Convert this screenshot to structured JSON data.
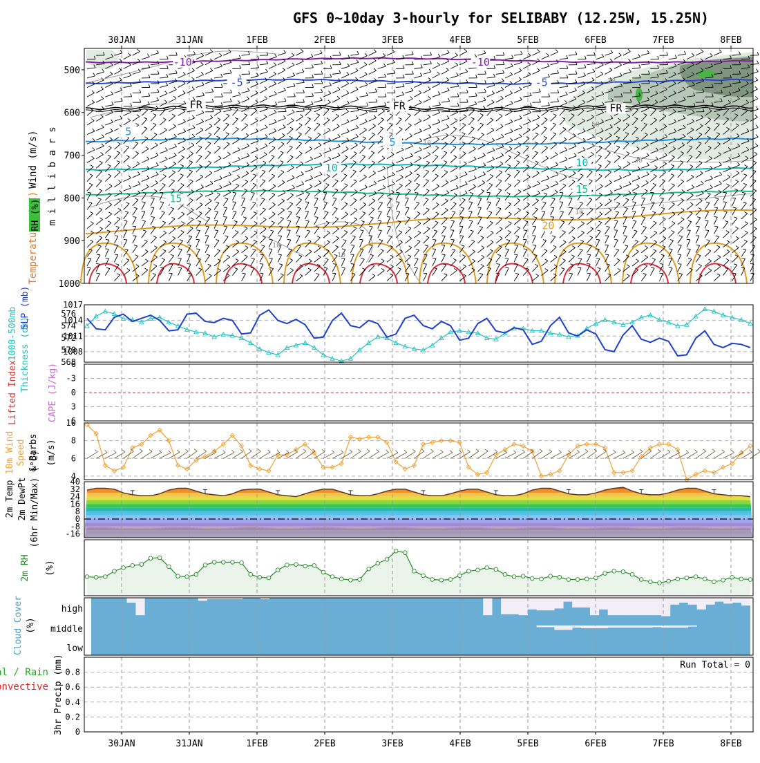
{
  "title": "GFS 0~10day 3-hourly for SELIBABY (12.25W, 15.25N)",
  "dates": [
    "30JAN",
    "31JAN",
    "1FEB",
    "2FEB",
    "3FEB",
    "4FEB",
    "5FEB",
    "6FEB",
    "7FEB",
    "8FEB"
  ],
  "colors": {
    "wind_barb": "#000000",
    "rh_contour": "#a0a0a0",
    "rh_fill_light": "#e2ebe2",
    "rh_fill_mid": "#b7c7b7",
    "rh_fill_dark": "#7f957f",
    "rh_fill_peak": "#46b446",
    "thickness": "#22c2c2",
    "slp": "#1c3fd0",
    "lifted_index": "#dd3333",
    "cape": "#cc66cc",
    "wind_speed": "#f0a030",
    "rh2m_line": "#228b22",
    "rh2m_fill": "#eaf4ea",
    "cloud": "#6aaed6",
    "cloud_clear": "#f2eef6",
    "precip_total": "#22aa22",
    "precip_conv": "#dd2222"
  },
  "chart_data": [
    {
      "type": "heatmap",
      "name": "upper_air",
      "ylabel_parts": [
        "Wind (m/s)",
        "Temperature (°C)",
        "RH (%)",
        "m i l l i b a r s"
      ],
      "yticks": [
        "500",
        "600",
        "700",
        "800",
        "900",
        "1000"
      ],
      "ylim": [
        1000,
        450
      ],
      "isotherm_labels": [
        {
          "text": "-10",
          "x": 0.9,
          "p": 482,
          "color": "#8a1aa8"
        },
        {
          "text": "-10",
          "x": 5.3,
          "p": 482,
          "color": "#8a1aa8"
        },
        {
          "text": "-5",
          "x": 1.7,
          "p": 530,
          "color": "#2848d0"
        },
        {
          "text": "-5",
          "x": 6.2,
          "p": 530,
          "color": "#2848d0"
        },
        {
          "text": "FR",
          "x": 1.1,
          "p": 582,
          "color": "#000000"
        },
        {
          "text": "FR",
          "x": 4.1,
          "p": 585,
          "color": "#000000"
        },
        {
          "text": "FR",
          "x": 7.3,
          "p": 590,
          "color": "#000000"
        },
        {
          "text": "5",
          "x": 0.1,
          "p": 645,
          "color": "#1e90e0"
        },
        {
          "text": "5",
          "x": 4.0,
          "p": 670,
          "color": "#1e90e0"
        },
        {
          "text": "10",
          "x": 3.1,
          "p": 730,
          "color": "#10b5b5"
        },
        {
          "text": "10",
          "x": 6.8,
          "p": 718,
          "color": "#10b5b5"
        },
        {
          "text": "15",
          "x": 0.8,
          "p": 802,
          "color": "#1db88a"
        },
        {
          "text": "15",
          "x": 6.8,
          "p": 780,
          "color": "#1db88a"
        },
        {
          "text": "20",
          "x": 6.3,
          "p": 865,
          "color": "#e09a20"
        }
      ],
      "rh_labels": [
        "30",
        "50",
        "10",
        "30",
        "10",
        "10",
        "10"
      ]
    },
    {
      "type": "line",
      "name": "slp_thickness",
      "ylabel_parts": [
        "1000-500mb",
        "Thickness (dm)",
        "SLP (mb)"
      ],
      "yticks_left": [
        "568",
        "570",
        "572",
        "574",
        "576"
      ],
      "yticks_right": [
        "1008",
        "1011",
        "1014",
        "1017"
      ],
      "ylim_thickness": [
        568,
        577.5
      ],
      "ylim_slp": [
        1006,
        1017
      ],
      "x": [
        0,
        0.125,
        0.25,
        0.375,
        0.5,
        0.625,
        0.75,
        0.875,
        1,
        1.125,
        1.25,
        1.375,
        1.5,
        1.625,
        1.75,
        1.875,
        2,
        2.125,
        2.25,
        2.375,
        2.5,
        2.625,
        2.75,
        2.875,
        3,
        3.125,
        3.25,
        3.375,
        3.5,
        3.625,
        3.75,
        3.875,
        4,
        4.125,
        4.25,
        4.375,
        4.5,
        4.625,
        4.75,
        4.875,
        5,
        5.125,
        5.25,
        5.375,
        5.5,
        5.625,
        5.75,
        5.875,
        6,
        6.125,
        6.25,
        6.375,
        6.5,
        6.625,
        6.75,
        6.875,
        7,
        7.125,
        7.25,
        7.375,
        7.5,
        7.625,
        7.75,
        7.875,
        8,
        8.125,
        8.25,
        8.375,
        8.5,
        8.625,
        8.75,
        8.875,
        9,
        9.125
      ],
      "series": [
        {
          "name": "thickness",
          "values": [
            574.0,
            575.6,
            576.4,
            576.0,
            575.2,
            575.0,
            574.6,
            575.2,
            575.4,
            574.6,
            574.0,
            573.4,
            573.0,
            572.8,
            572.2,
            572.6,
            572.4,
            572.0,
            571.2,
            570.2,
            569.6,
            569.2,
            570.4,
            570.8,
            571.2,
            570.4,
            569.2,
            568.6,
            568.2,
            568.6,
            570.0,
            571.2,
            572.2,
            572.0,
            571.2,
            570.6,
            570.2,
            570.0,
            570.8,
            572.0,
            573.0,
            573.2,
            573.0,
            572.8,
            572.0,
            571.8,
            572.8,
            573.6,
            573.6,
            573.2,
            573.2,
            572.8,
            572.6,
            572.2,
            572.4,
            573.6,
            574.4,
            575.0,
            574.6,
            574.2,
            574.6,
            575.4,
            575.8,
            575.0,
            574.6,
            574.0,
            574.2,
            575.6,
            576.8,
            576.4,
            575.8,
            575.4,
            575.0,
            574.4
          ]
        },
        {
          "name": "slp",
          "values": [
            1014.4,
            1012.4,
            1012.2,
            1014.6,
            1015.2,
            1013.8,
            1014.4,
            1015.0,
            1014.0,
            1012.0,
            1012.2,
            1015.2,
            1015.4,
            1013.8,
            1013.6,
            1014.4,
            1014.0,
            1011.4,
            1011.6,
            1015.0,
            1016.0,
            1014.0,
            1013.4,
            1014.2,
            1013.2,
            1010.6,
            1010.8,
            1014.0,
            1015.4,
            1013.0,
            1012.6,
            1014.0,
            1013.4,
            1010.8,
            1011.4,
            1014.4,
            1015.0,
            1013.0,
            1012.4,
            1013.8,
            1013.0,
            1010.2,
            1010.6,
            1013.4,
            1014.4,
            1012.0,
            1011.6,
            1012.6,
            1012.2,
            1009.4,
            1010.0,
            1013.0,
            1014.6,
            1011.6,
            1011.0,
            1012.2,
            1011.4,
            1008.4,
            1008.0,
            1011.2,
            1013.0,
            1010.4,
            1009.8,
            1010.6,
            1010.0,
            1007.2,
            1007.4,
            1010.6,
            1012.0,
            1009.4,
            1008.8,
            1009.6,
            1009.4,
            1008.8
          ]
        }
      ]
    },
    {
      "type": "line",
      "name": "stability",
      "ylabel_parts": [
        "Lifted Index",
        "CAPE (J/kg)"
      ],
      "yticks": [
        "-6",
        "-3",
        "0",
        "3",
        "6"
      ],
      "ylim": [
        -6,
        6
      ],
      "series": [
        {
          "name": "lifted_index",
          "values": [
            0
          ]
        }
      ]
    },
    {
      "type": "line",
      "name": "wind10m",
      "ylabel_parts": [
        "10m Wind",
        "Speed",
        "& Barbs",
        "(m/s)"
      ],
      "yticks": [
        "4",
        "6",
        "8",
        "10"
      ],
      "ylim": [
        3.6,
        10
      ],
      "values": [
        9.8,
        8.8,
        5.2,
        4.6,
        5.0,
        7.2,
        7.6,
        8.6,
        9.2,
        8.0,
        5.2,
        4.8,
        5.8,
        6.2,
        6.8,
        7.6,
        8.6,
        7.4,
        5.2,
        4.8,
        4.6,
        6.4,
        6.4,
        7.0,
        7.6,
        6.6,
        5.0,
        5.0,
        5.4,
        8.4,
        8.2,
        8.4,
        8.4,
        7.8,
        5.6,
        4.8,
        5.2,
        7.6,
        7.8,
        8.0,
        8.0,
        7.8,
        5.0,
        4.2,
        4.4,
        6.4,
        7.0,
        7.6,
        7.4,
        6.8,
        4.0,
        4.2,
        4.6,
        6.4,
        7.4,
        7.6,
        7.6,
        7.2,
        4.4,
        4.4,
        4.6,
        6.2,
        7.2,
        7.6,
        7.6,
        7.0,
        3.6,
        4.2,
        4.6,
        4.4,
        5.0,
        5.4,
        6.6,
        7.4
      ]
    },
    {
      "type": "area",
      "name": "temperature2m",
      "ylabel_parts": [
        "2m Temp",
        "2m DewPt",
        "(6hr Min/Max) (°C)"
      ],
      "yticks": [
        "40",
        "32",
        "24",
        "16",
        "8",
        "0",
        "-8",
        "-16"
      ],
      "ylim": [
        -20,
        40
      ],
      "series": [
        {
          "name": "temp",
          "values": [
            31,
            33,
            33,
            32,
            28,
            26,
            25,
            25,
            27,
            31,
            33,
            33,
            30,
            27,
            26,
            25,
            27,
            31,
            32,
            32,
            29,
            26,
            25,
            24,
            27,
            30,
            32,
            32,
            29,
            26,
            25,
            25,
            27,
            30,
            32,
            32,
            29,
            26,
            25,
            25,
            27,
            30,
            32,
            32,
            29,
            26,
            25,
            25,
            27,
            31,
            33,
            33,
            30,
            27,
            26,
            26,
            28,
            31,
            33,
            34,
            30,
            27,
            26,
            26,
            28,
            31,
            33,
            33,
            30,
            27,
            26,
            25,
            25,
            24
          ]
        },
        {
          "name": "dewpoint",
          "values": [
            -9,
            -9,
            -9,
            -9.5,
            -10,
            -10,
            -10,
            -10,
            -9.5,
            -9,
            -9,
            -9,
            -9.5,
            -10,
            -10,
            -10,
            -9.5,
            -9,
            -8.5,
            -9,
            -9.5,
            -10,
            -10,
            -10,
            -9.5,
            -9,
            -9,
            -9,
            -9.5,
            -10,
            -10,
            -10,
            -9.5,
            -9,
            -9,
            -9,
            -9.5,
            -10,
            -10,
            -10,
            -9.5,
            -9,
            -9,
            -9,
            -9.5,
            -10,
            -10,
            -10,
            -9.5,
            -9,
            -9,
            -9,
            -9.5,
            -10,
            -10,
            -10,
            -9.5,
            -9,
            -9,
            -9,
            -9.5,
            -10,
            -10,
            -10,
            -9.5,
            -9,
            -9,
            -9,
            -9.5,
            -10,
            -10,
            -10,
            -9.5,
            -9.5
          ]
        }
      ]
    },
    {
      "type": "area",
      "name": "rh2m",
      "ylabel_parts": [
        "2m RH",
        "(%)"
      ],
      "ylim": [
        0,
        100
      ],
      "values": [
        34,
        33,
        34,
        44,
        50,
        54,
        56,
        67,
        68,
        52,
        35,
        34,
        38,
        55,
        60,
        60,
        60,
        59,
        38,
        33,
        32,
        46,
        55,
        56,
        53,
        54,
        42,
        34,
        30,
        28,
        29,
        48,
        58,
        65,
        80,
        77,
        44,
        36,
        29,
        28,
        29,
        36,
        44,
        46,
        50,
        47,
        38,
        34,
        35,
        31,
        30,
        35,
        33,
        29,
        29,
        30,
        32,
        40,
        44,
        43,
        38,
        29,
        25,
        23,
        26,
        30,
        32,
        34,
        30,
        25,
        28,
        33,
        30,
        29
      ]
    },
    {
      "type": "heatmap",
      "name": "cloud_cover",
      "ylabel_parts": [
        "Cloud Cover",
        "(%)"
      ],
      "levels": [
        "high",
        "middle",
        "low"
      ],
      "high_clear": [
        0,
        0,
        0,
        0,
        0.25,
        0.9,
        0,
        0,
        0,
        0,
        0,
        0,
        0.15,
        0.07,
        0.07,
        0.07,
        0.07,
        0,
        0,
        0.07,
        0,
        0,
        0,
        0,
        0,
        0,
        0,
        0,
        0,
        0,
        0,
        0,
        0,
        0,
        0,
        0,
        0,
        0,
        0,
        0,
        0,
        0,
        0,
        0,
        0.9,
        0,
        0.85,
        0.85,
        0.9,
        0.6,
        0.65,
        0.65,
        0.55,
        0.2,
        0.5,
        0.5,
        0.9,
        0.6,
        0.9,
        0.9,
        0.9,
        0.9,
        0.9,
        0.9,
        0.95,
        0.35,
        0.25,
        0.35,
        0.6,
        0.35,
        0.2,
        0.3,
        0.25,
        0.4
      ],
      "middle_clear": [
        0,
        0,
        0,
        0,
        0,
        0,
        0,
        0,
        0,
        0,
        0,
        0,
        0,
        0,
        0,
        0,
        0,
        0,
        0,
        0,
        0,
        0,
        0,
        0,
        0,
        0,
        0,
        0,
        0,
        0,
        0,
        0,
        0,
        0,
        0,
        0,
        0,
        0,
        0,
        0,
        0,
        0,
        0,
        0,
        0,
        0,
        0,
        0,
        0,
        0,
        0.3,
        0.3,
        0.8,
        0.8,
        0.4,
        0.5,
        0.5,
        0.5,
        0.4,
        0.4,
        0.4,
        0.4,
        0.4,
        0.3,
        0.4,
        0.4,
        0.4,
        0.2,
        0,
        0,
        0,
        0,
        0,
        0
      ]
    },
    {
      "type": "bar",
      "name": "precip3hr",
      "ylabel_parts": [
        "Total / Rain",
        "Convective",
        "3hr Precip (mm)"
      ],
      "yticks": [
        "0",
        "0.2",
        "0.4",
        "0.6",
        "0.8"
      ],
      "ylim": [
        0,
        1.0
      ],
      "annotation": "Run Total = 0",
      "values": [
        0
      ]
    }
  ]
}
